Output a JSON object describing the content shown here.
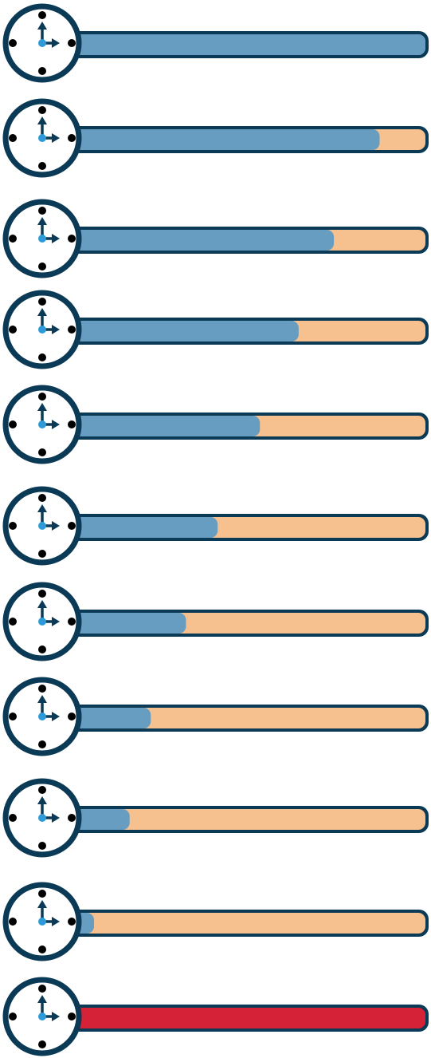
{
  "colors": {
    "outline": "#0b3a56",
    "clock_face": "#ffffff",
    "hand": "#0b3a56",
    "hub": "#2e9ad8",
    "dot": "#000000",
    "elapsed": "#679dc1",
    "remaining": "#f6c08f",
    "expired": "#d52237"
  },
  "icon": "stopwatch-clock-icon",
  "timers": [
    {
      "remaining_fraction": 1.0,
      "state": "running"
    },
    {
      "remaining_fraction": 0.87,
      "state": "running"
    },
    {
      "remaining_fraction": 0.74,
      "state": "running"
    },
    {
      "remaining_fraction": 0.64,
      "state": "running"
    },
    {
      "remaining_fraction": 0.53,
      "state": "running"
    },
    {
      "remaining_fraction": 0.41,
      "state": "running"
    },
    {
      "remaining_fraction": 0.32,
      "state": "running"
    },
    {
      "remaining_fraction": 0.22,
      "state": "running"
    },
    {
      "remaining_fraction": 0.16,
      "state": "running"
    },
    {
      "remaining_fraction": 0.05,
      "state": "running"
    },
    {
      "remaining_fraction": 1.0,
      "state": "expired"
    }
  ]
}
